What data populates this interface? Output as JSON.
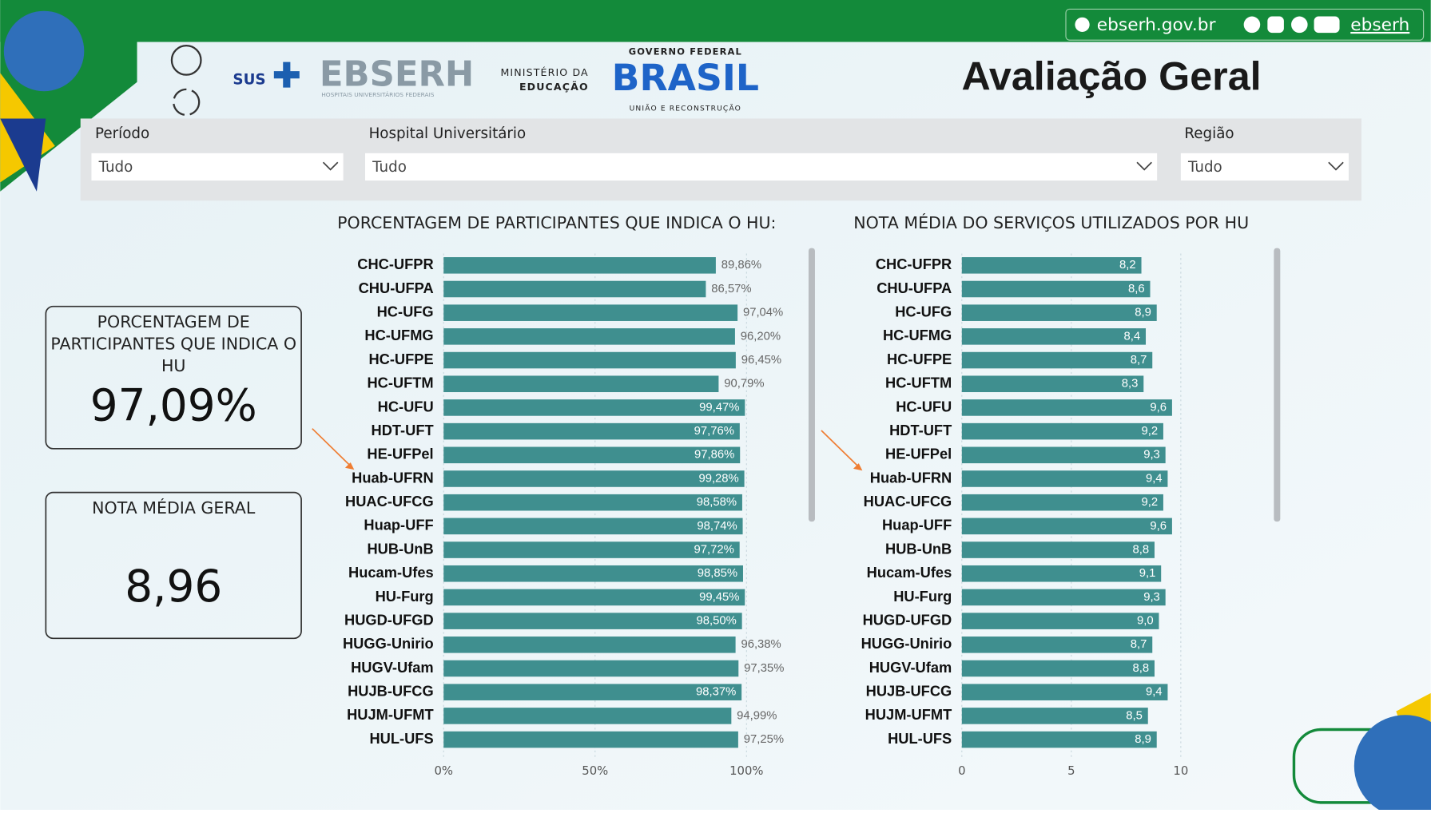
{
  "header": {
    "site": "ebserh.gov.br",
    "social": "ebserh",
    "title": "Avaliação Geral",
    "logos": {
      "sus": "SUS",
      "ebserh": "EBSERH",
      "ebserh_sub": "HOSPITAIS UNIVERSITÁRIOS FEDERAIS",
      "ministry_1": "MINISTÉRIO DA",
      "ministry_2": "EDUCAÇÃO",
      "gov_top": "GOVERNO FEDERAL",
      "gov_name": "BRASIL",
      "gov_bottom": "UNIÃO E RECONSTRUÇÃO"
    }
  },
  "filters": [
    {
      "label": "Período",
      "value": "Tudo"
    },
    {
      "label": "Hospital Universitário",
      "value": "Tudo"
    },
    {
      "label": "Região",
      "value": "Tudo"
    }
  ],
  "kpis": [
    {
      "label": "PORCENTAGEM DE PARTICIPANTES QUE INDICA O HU",
      "value": "97,09%"
    },
    {
      "label": "NOTA MÉDIA GERAL",
      "value": "8,96"
    }
  ],
  "chart_data": [
    {
      "type": "bar",
      "orientation": "horizontal",
      "title": "PORCENTAGEM DE PARTICIPANTES QUE INDICA O HU:",
      "color": "#3f8f8f",
      "categories": [
        "CHC-UFPR",
        "CHU-UFPA",
        "HC-UFG",
        "HC-UFMG",
        "HC-UFPE",
        "HC-UFTM",
        "HC-UFU",
        "HDT-UFT",
        "HE-UFPel",
        "Huab-UFRN",
        "HUAC-UFCG",
        "Huap-UFF",
        "HUB-UnB",
        "Hucam-Ufes",
        "HU-Furg",
        "HUGD-UFGD",
        "HUGG-Unirio",
        "HUGV-Ufam",
        "HUJB-UFCG",
        "HUJM-UFMT",
        "HUL-UFS"
      ],
      "values": [
        89.86,
        86.57,
        97.04,
        96.2,
        96.45,
        90.79,
        99.47,
        97.76,
        97.86,
        99.28,
        98.58,
        98.74,
        97.72,
        98.85,
        99.45,
        98.5,
        96.38,
        97.35,
        98.37,
        94.99,
        97.25
      ],
      "value_labels": [
        "89,86%",
        "86,57%",
        "97,04%",
        "96,20%",
        "96,45%",
        "90,79%",
        "99,47%",
        "97,76%",
        "97,86%",
        "99,28%",
        "98,58%",
        "98,74%",
        "97,72%",
        "98,85%",
        "99,45%",
        "98,50%",
        "96,38%",
        "97,35%",
        "98,37%",
        "94,99%",
        "97,25%"
      ],
      "xlim": [
        0,
        100
      ],
      "xticks": [
        {
          "value": 0,
          "label": "0%"
        },
        {
          "value": 50,
          "label": "50%"
        },
        {
          "value": 100,
          "label": "100%"
        }
      ],
      "grid": true
    },
    {
      "type": "bar",
      "orientation": "horizontal",
      "title": "NOTA MÉDIA DO SERVIÇOS UTILIZADOS POR HU",
      "color": "#3f8f8f",
      "categories": [
        "CHC-UFPR",
        "CHU-UFPA",
        "HC-UFG",
        "HC-UFMG",
        "HC-UFPE",
        "HC-UFTM",
        "HC-UFU",
        "HDT-UFT",
        "HE-UFPel",
        "Huab-UFRN",
        "HUAC-UFCG",
        "Huap-UFF",
        "HUB-UnB",
        "Hucam-Ufes",
        "HU-Furg",
        "HUGD-UFGD",
        "HUGG-Unirio",
        "HUGV-Ufam",
        "HUJB-UFCG",
        "HUJM-UFMT",
        "HUL-UFS"
      ],
      "values": [
        8.2,
        8.6,
        8.9,
        8.4,
        8.7,
        8.3,
        9.6,
        9.2,
        9.3,
        9.4,
        9.2,
        9.6,
        8.8,
        9.1,
        9.3,
        9.0,
        8.7,
        8.8,
        9.4,
        8.5,
        8.9
      ],
      "value_labels": [
        "8,2",
        "8,6",
        "8,9",
        "8,4",
        "8,7",
        "8,3",
        "9,6",
        "9,2",
        "9,3",
        "9,4",
        "9,2",
        "9,6",
        "8,8",
        "9,1",
        "9,3",
        "9,0",
        "8,7",
        "8,8",
        "9,4",
        "8,5",
        "8,9"
      ],
      "xlim": [
        0,
        10
      ],
      "xticks": [
        0,
        5,
        10
      ],
      "grid": true
    }
  ]
}
